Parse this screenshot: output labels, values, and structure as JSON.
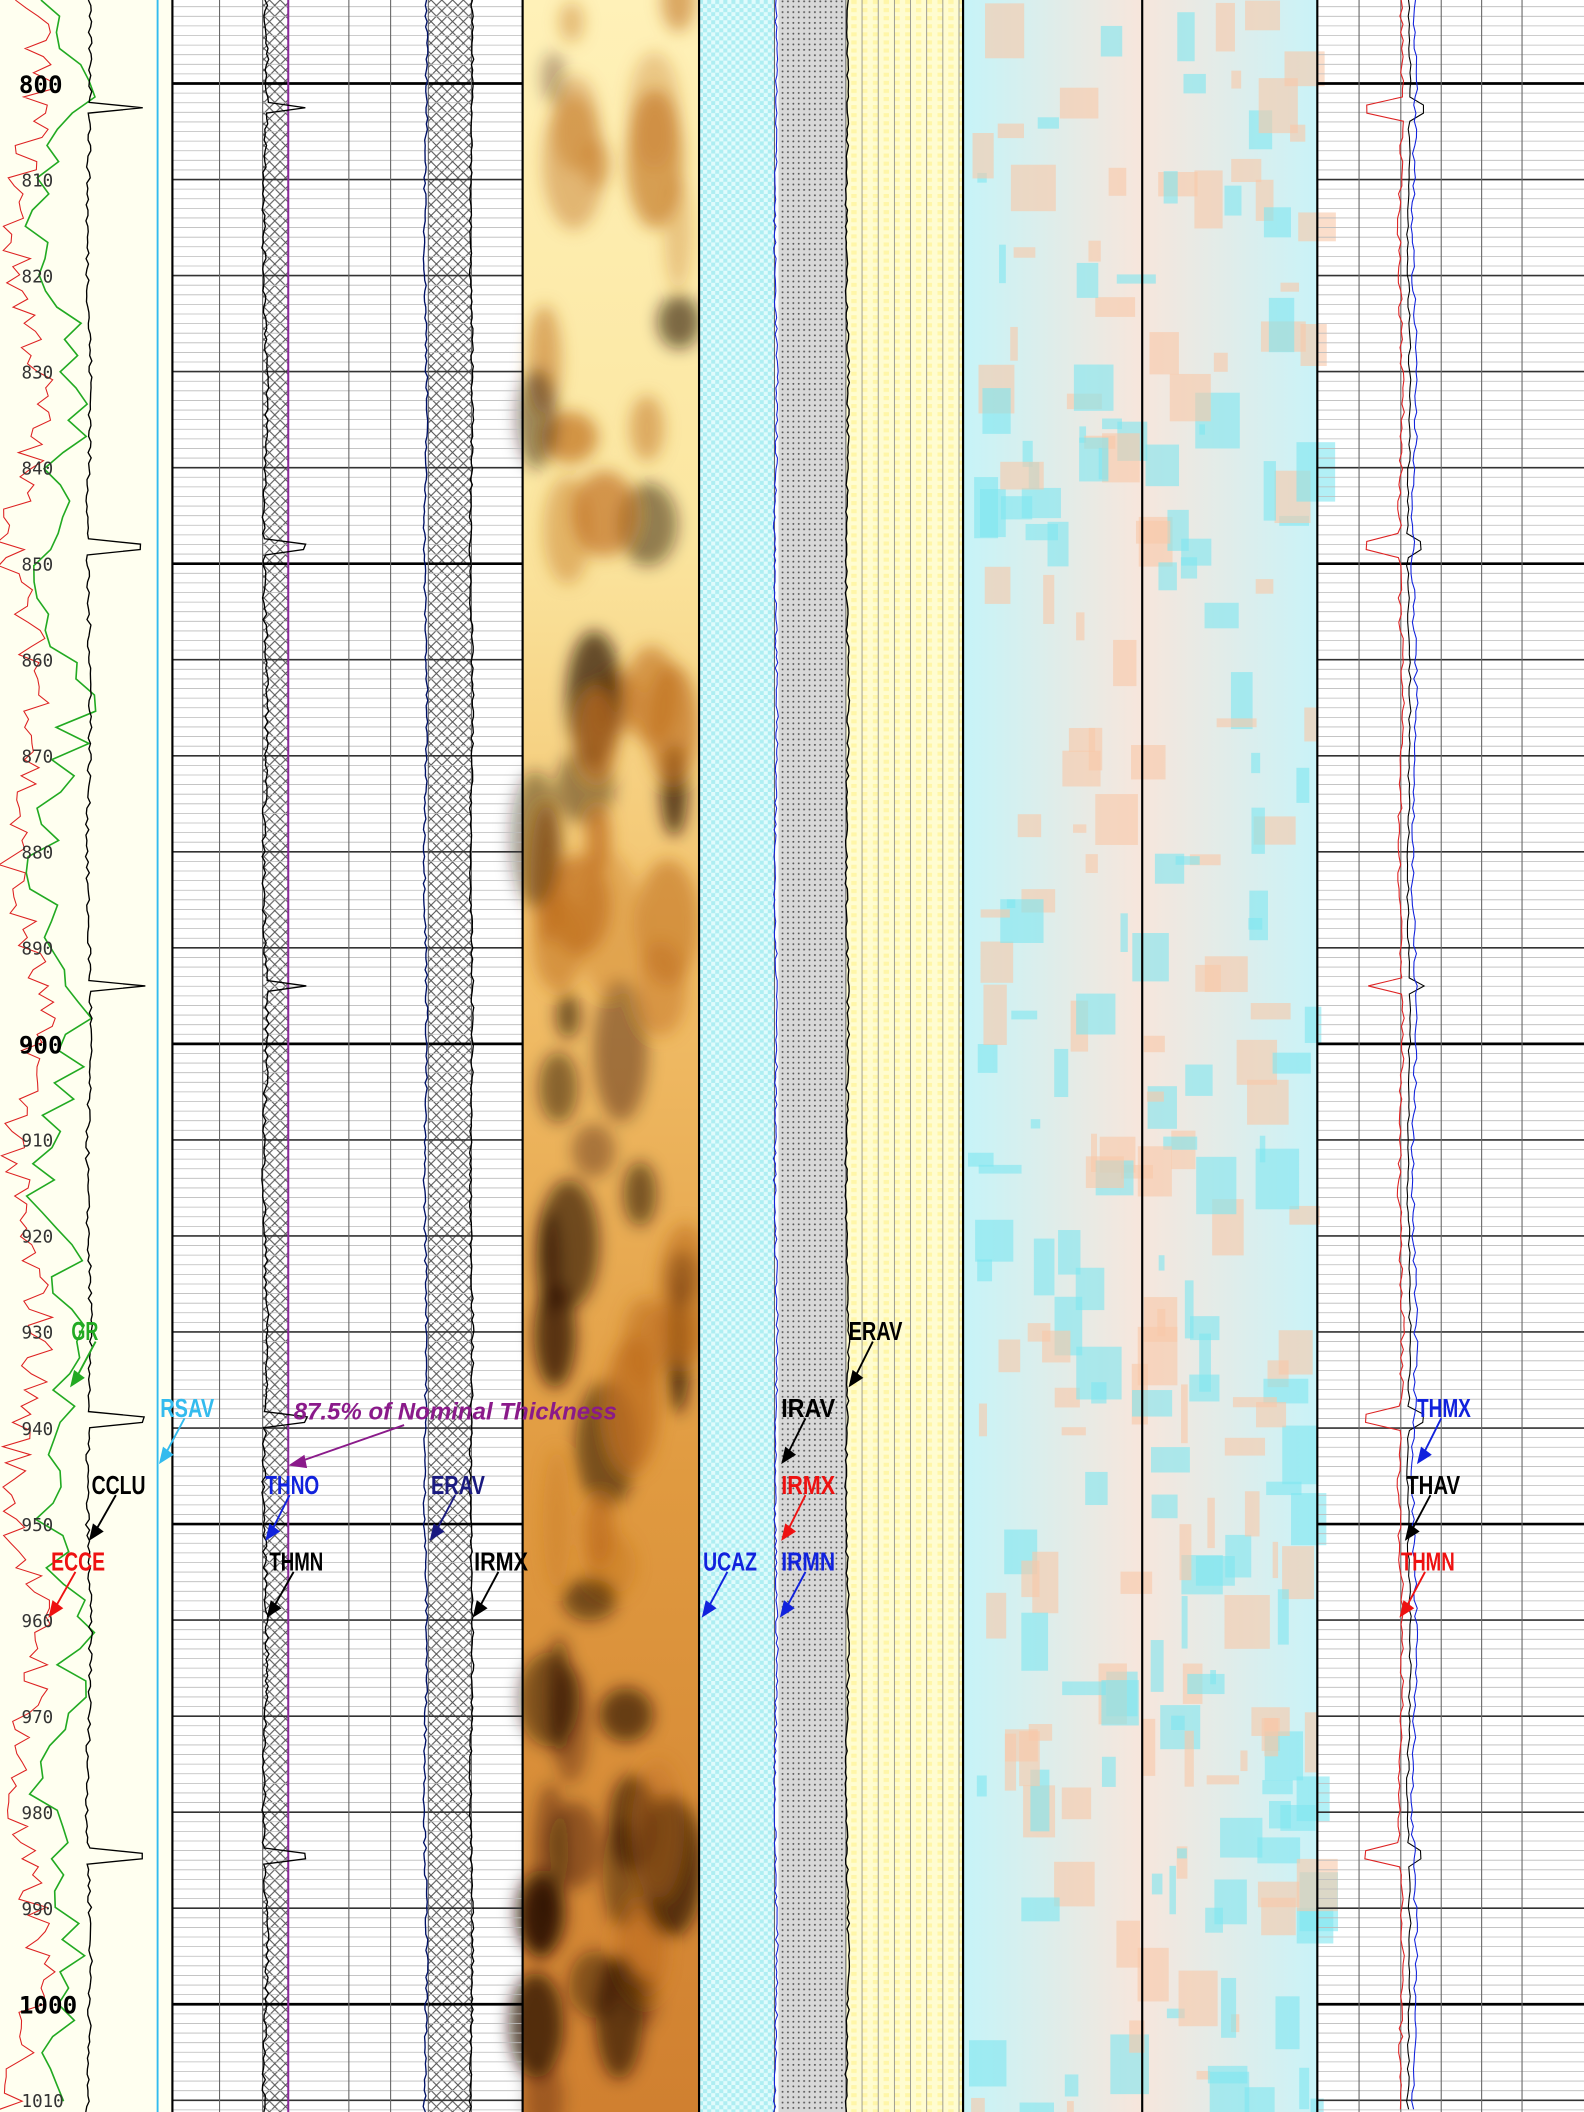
{
  "depth_labels": [
    "800",
    "810",
    "820",
    "830",
    "840",
    "850",
    "860",
    "870",
    "880",
    "890",
    "900",
    "910",
    "920",
    "930",
    "940",
    "950",
    "960",
    "970",
    "980",
    "990",
    "1000",
    "1010"
  ],
  "curve_labels": [
    {
      "text": "GR",
      "color": "#22aa22"
    },
    {
      "text": "RSAV",
      "color": "#33bbee"
    },
    {
      "text": "THMX",
      "color": "#1122dd"
    },
    {
      "text": "IRAV",
      "color": "#000000"
    },
    {
      "text": "ERAV",
      "color": "#000000"
    },
    {
      "text": "CCLU",
      "color": "#000000"
    },
    {
      "text": "THNO",
      "color": "#1122dd"
    },
    {
      "text": "ERAV",
      "color": "#1a1a80"
    },
    {
      "text": "IRMX",
      "color": "#ee1111"
    },
    {
      "text": "THAV",
      "color": "#000000"
    },
    {
      "text": "ECCE",
      "color": "#ee1111"
    },
    {
      "text": "THMN",
      "color": "#000000"
    },
    {
      "text": "IRMX",
      "color": "#000000"
    },
    {
      "text": "UCAZ",
      "color": "#1122dd"
    },
    {
      "text": "IRMN",
      "color": "#1122dd"
    },
    {
      "text": "THMN",
      "color": "#ee1111"
    }
  ],
  "annotation": "87.5% of Nominal Thickness"
}
